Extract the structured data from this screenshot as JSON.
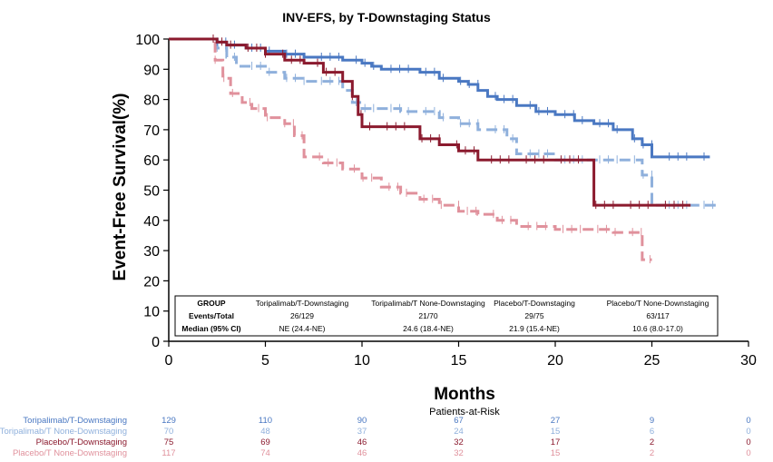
{
  "chart_data": {
    "type": "line",
    "title": "INV-EFS, by T-Downstaging Status",
    "xlabel": "Months",
    "ylabel": "Event-Free Survival(%)",
    "xlim": [
      0,
      30
    ],
    "ylim": [
      0,
      100
    ],
    "xticks": [
      "0",
      "5",
      "10",
      "15",
      "20",
      "25",
      "30"
    ],
    "yticks": [
      "0",
      "10",
      "20",
      "30",
      "40",
      "50",
      "60",
      "70",
      "80",
      "90",
      "100"
    ],
    "grid": false,
    "colors": {
      "Toripalimab/T-Downstaging": "#4a78c2",
      "Toripalimab/T None-Downstaging": "#8fb0dc",
      "Placebo/T-Downstaging": "#8b1a2e",
      "Placebo/T None-Downstaging": "#e0919c"
    },
    "series": [
      {
        "name": "Toripalimab/T-Downstaging",
        "dashed": false,
        "x": [
          0,
          2.2,
          2.5,
          3,
          4,
          5,
          6,
          7,
          9,
          10,
          10.5,
          11,
          13,
          14,
          15,
          15.5,
          16,
          16.5,
          17,
          18,
          19,
          20,
          21,
          22,
          23,
          24,
          24.5,
          25,
          28
        ],
        "y": [
          100,
          100,
          99,
          98,
          97,
          96,
          95,
          94,
          93,
          92,
          91,
          90,
          89,
          87,
          86,
          85,
          83,
          81,
          80,
          78,
          76,
          75,
          73,
          72,
          70,
          67,
          65,
          61,
          61
        ]
      },
      {
        "name": "Toripalimab/T None-Downstaging",
        "dashed": false,
        "x": [
          0,
          2.2,
          2.5,
          3,
          3.5,
          5,
          6,
          7,
          9,
          9.5,
          10,
          12,
          14,
          15,
          16,
          17,
          17.5,
          18,
          20,
          22,
          24,
          24.5,
          25,
          28.5
        ],
        "y": [
          100,
          100,
          97,
          94,
          91,
          89,
          87,
          86,
          83,
          79,
          77,
          76,
          74,
          72,
          70,
          70,
          67,
          62,
          60,
          60,
          60,
          55,
          45,
          45
        ]
      },
      {
        "name": "Placebo/T-Downstaging",
        "dashed": false,
        "x": [
          0,
          2,
          2.5,
          3,
          4,
          5,
          6,
          7,
          8,
          9,
          9.5,
          9.8,
          10,
          12,
          13,
          14,
          15,
          16,
          17,
          20,
          21,
          22,
          25,
          27
        ],
        "y": [
          100,
          100,
          99,
          98,
          97,
          95,
          93,
          92,
          89,
          86,
          81,
          75,
          71,
          71,
          67,
          65,
          63,
          60,
          60,
          60,
          60,
          45,
          45,
          45
        ]
      },
      {
        "name": "Placebo/T None-Downstaging",
        "dashed": false,
        "x": [
          0,
          2.1,
          2.4,
          2.8,
          3.2,
          3.8,
          4.3,
          5,
          6,
          6.5,
          7,
          8,
          9,
          10,
          11,
          12,
          13,
          14,
          15,
          16,
          17,
          18,
          20,
          22,
          23,
          24,
          24.5,
          25
        ],
        "y": [
          100,
          100,
          93,
          87,
          82,
          79,
          77,
          74,
          72,
          68,
          61,
          59,
          57,
          54,
          51,
          49,
          47,
          45,
          43,
          42,
          40,
          38,
          37,
          37,
          36,
          36,
          27,
          27
        ]
      }
    ],
    "summary_table": {
      "headers": [
        "GROUP",
        "Toripalimab/T-Downstaging",
        "Toripalimab/T None-Downstaging",
        "Placebo/T-Downstaging",
        "Placebo/T None-Downstaging"
      ],
      "rows": [
        [
          "Events/Total",
          "26/129",
          "21/70",
          "29/75",
          "63/117"
        ],
        [
          "Median (95% CI)",
          "NE (24.4-NE)",
          "24.6 (18.4-NE)",
          "21.9 (15.4-NE)",
          "10.6 (8.0-17.0)"
        ]
      ]
    },
    "risk_table": {
      "title": "Patients-at-Risk",
      "times": [
        0,
        5,
        10,
        15,
        20,
        25,
        30
      ],
      "groups": [
        {
          "name": "Toripalimab/T-Downstaging",
          "counts": [
            "129",
            "110",
            "90",
            "67",
            "27",
            "9",
            "0"
          ]
        },
        {
          "name": "Toripalimab/T None-Downstaging",
          "counts": [
            "70",
            "48",
            "37",
            "24",
            "15",
            "6",
            "0"
          ]
        },
        {
          "name": "Placebo/T-Downstaging",
          "counts": [
            "75",
            "69",
            "46",
            "32",
            "17",
            "2",
            "0"
          ]
        },
        {
          "name": "Placebo/T None-Downstaging",
          "counts": [
            "117",
            "74",
            "46",
            "32",
            "15",
            "2",
            "0"
          ]
        }
      ]
    }
  }
}
